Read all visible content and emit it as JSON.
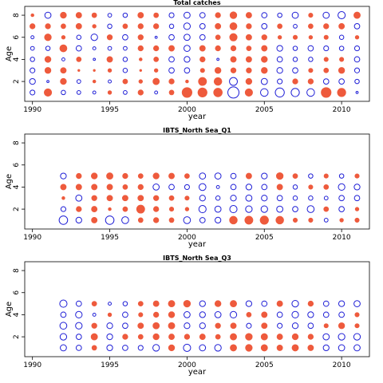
{
  "chart_data": [
    {
      "type": "scatter",
      "title": "Total catches",
      "xlabel": "year",
      "ylabel": "Age",
      "xlim": [
        1989.5,
        2011.8
      ],
      "ylim": [
        0.2,
        8.8
      ],
      "xticks": [
        1990,
        1995,
        2000,
        2005,
        2010
      ],
      "yticks": [
        2,
        4,
        6,
        8
      ],
      "grid": false,
      "x": [
        1990,
        1991,
        1992,
        1993,
        1994,
        1995,
        1996,
        1997,
        1998,
        1999,
        2000,
        2001,
        2002,
        2003,
        2004,
        2005,
        2006,
        2007,
        2008,
        2009,
        2010,
        2011
      ],
      "ages": [
        1,
        2,
        3,
        4,
        5,
        6,
        7,
        8
      ],
      "series": [
        {
          "name": "positive",
          "color": "#ee5a3c",
          "fill": true
        },
        {
          "name": "negative",
          "color": "#1f1fd6",
          "fill": false
        }
      ],
      "residuals": {
        "1": [
          -0.25,
          0.6,
          -0.2,
          -0.15,
          -0.1,
          0.15,
          -0.15,
          0.3,
          -0.1,
          0.25,
          1.05,
          0.9,
          0.8,
          -1.3,
          0.6,
          -0.6,
          -0.85,
          -0.7,
          -0.6,
          1.05,
          0.75,
          -0.05
        ],
        "2": [
          -0.35,
          -0.05,
          0.4,
          -0.15,
          0.1,
          -0.1,
          0.25,
          0.15,
          0.45,
          0.3,
          0.1,
          0.7,
          0.65,
          -0.65,
          0.4,
          -0.4,
          -0.25,
          0.3,
          0.3,
          -0.3,
          -0.3,
          -0.2
        ],
        "3": [
          -0.25,
          0.4,
          0.35,
          0.05,
          0.05,
          0.15,
          -0.2,
          0.05,
          0.15,
          -0.3,
          -0.3,
          0.2,
          0.4,
          0.3,
          0.3,
          0.4,
          -0.35,
          -0.3,
          0.2,
          0.25,
          0.4,
          -0.25
        ],
        "4": [
          -0.2,
          0.4,
          -0.1,
          0.25,
          -0.05,
          0.35,
          -0.2,
          0.1,
          0.25,
          -0.3,
          -0.35,
          0.3,
          -0.05,
          0.35,
          0.35,
          0.4,
          -0.3,
          -0.2,
          -0.2,
          0.2,
          0.2,
          -0.3
        ],
        "5": [
          -0.15,
          -0.2,
          0.55,
          -0.3,
          -0.1,
          -0.15,
          -0.15,
          0.3,
          0.3,
          0.35,
          -0.4,
          0.35,
          0.3,
          0.3,
          0.25,
          0.35,
          -0.35,
          -0.2,
          -0.3,
          -0.25,
          -0.2,
          -0.25
        ],
        "6": [
          -0.1,
          0.5,
          0.15,
          -0.2,
          -0.45,
          0.3,
          -0.3,
          0.3,
          -0.05,
          -0.3,
          -0.4,
          -0.3,
          0.25,
          0.6,
          0.35,
          0.3,
          0.15,
          0.2,
          0.15,
          0.2,
          -0.2,
          0.15
        ],
        "7": [
          0.3,
          0.3,
          0.25,
          0.35,
          0.15,
          -0.2,
          0.25,
          0.3,
          0.3,
          -0.2,
          -0.45,
          -0.3,
          0.35,
          0.55,
          0.3,
          -0.3,
          0.25,
          -0.15,
          0.25,
          0.3,
          0.35,
          -0.3
        ],
        "8": [
          0.1,
          -0.4,
          0.4,
          0.35,
          0.25,
          -0.15,
          -0.2,
          0.35,
          0.25,
          -0.25,
          -0.4,
          -0.3,
          0.3,
          0.5,
          0.35,
          -0.3,
          -0.2,
          -0.4,
          0.2,
          -0.4,
          -0.55,
          0.45
        ]
      }
    },
    {
      "type": "scatter",
      "title": "IBTS_North Sea_Q1",
      "xlabel": "year",
      "ylabel": "Age",
      "xlim": [
        1989.5,
        2011.8
      ],
      "ylim": [
        0.2,
        8.8
      ],
      "xticks": [
        1990,
        1995,
        2000,
        2005,
        2010
      ],
      "yticks": [
        2,
        4,
        6,
        8
      ],
      "grid": false,
      "x": [
        1992,
        1993,
        1994,
        1995,
        1996,
        1997,
        1998,
        1999,
        2000,
        2001,
        2002,
        2003,
        2004,
        2005,
        2006,
        2007,
        2008,
        2009,
        2010,
        2011
      ],
      "ages": [
        1,
        2,
        3,
        4,
        5
      ],
      "series": [
        {
          "name": "positive",
          "color": "#ee5a3c",
          "fill": true
        },
        {
          "name": "negative",
          "color": "#1f1fd6",
          "fill": false
        }
      ],
      "residuals": {
        "1": [
          -0.75,
          -0.35,
          0.35,
          -0.75,
          -0.5,
          0.25,
          0.3,
          0.25,
          -0.5,
          -0.3,
          -0.35,
          0.65,
          0.7,
          0.75,
          0.65,
          0.2,
          0.2,
          -0.15,
          0.15,
          0.2
        ],
        "2": [
          -0.25,
          0.3,
          0.35,
          0.1,
          0.25,
          0.7,
          0.3,
          0.2,
          0.15,
          -0.55,
          -0.4,
          -0.55,
          -0.45,
          -0.45,
          -0.4,
          -0.3,
          -0.5,
          0.25,
          -0.3,
          0.15
        ],
        "3": [
          0.1,
          -0.4,
          0.3,
          0.35,
          0.35,
          0.35,
          0.3,
          0.25,
          0.2,
          -0.35,
          -0.2,
          -0.35,
          -0.4,
          -0.35,
          -0.3,
          -0.2,
          -0.2,
          -0.15,
          -0.3,
          -0.3
        ],
        "4": [
          0.35,
          0.35,
          0.35,
          0.35,
          0.25,
          0.3,
          -0.4,
          -0.3,
          -0.25,
          -0.5,
          -0.1,
          -0.3,
          -0.35,
          -0.3,
          0.35,
          -0.2,
          0.2,
          0.25,
          -0.45,
          -0.35
        ],
        "5": [
          -0.35,
          0.3,
          0.4,
          0.45,
          0.3,
          0.25,
          0.4,
          0.35,
          0.25,
          -0.4,
          -0.4,
          -0.3,
          0.35,
          -0.35,
          0.5,
          0.25,
          -0.2,
          0.2,
          -0.2,
          0.2
        ]
      }
    },
    {
      "type": "scatter",
      "title": "IBTS_North Sea_Q3",
      "xlabel": "year",
      "ylabel": "Age",
      "xlim": [
        1989.5,
        2011.8
      ],
      "ylim": [
        0.2,
        8.8
      ],
      "xticks": [
        1990,
        1995,
        2000,
        2005,
        2010
      ],
      "yticks": [
        2,
        4,
        6,
        8
      ],
      "grid": false,
      "x": [
        1992,
        1993,
        1994,
        1995,
        1996,
        1997,
        1998,
        1999,
        2000,
        2001,
        2002,
        2003,
        2004,
        2005,
        2006,
        2007,
        2008,
        2009,
        2010,
        2011
      ],
      "ages": [
        1,
        2,
        3,
        4,
        5
      ],
      "series": [
        {
          "name": "positive",
          "color": "#ee5a3c",
          "fill": true
        },
        {
          "name": "negative",
          "color": "#1f1fd6",
          "fill": false
        }
      ],
      "residuals": {
        "1": [
          -0.4,
          -0.3,
          0.25,
          -0.35,
          -0.3,
          -0.25,
          -0.45,
          0.4,
          -0.55,
          -0.4,
          -0.45,
          0.45,
          0.5,
          0.45,
          0.35,
          0.45,
          0.35,
          -0.35,
          -0.4,
          -0.4
        ],
        "2": [
          -0.45,
          -0.3,
          0.45,
          -0.35,
          0.3,
          0.25,
          0.4,
          0.35,
          0.3,
          0.35,
          0.25,
          0.45,
          0.5,
          0.45,
          0.35,
          0.4,
          0.3,
          -0.4,
          -0.45,
          -0.45
        ],
        "3": [
          -0.5,
          -0.45,
          0.3,
          -0.35,
          -0.3,
          0.35,
          0.45,
          0.45,
          -0.35,
          -0.35,
          0.3,
          0.35,
          -0.25,
          0.35,
          -0.25,
          -0.35,
          -0.3,
          0.2,
          0.4,
          0.2
        ],
        "4": [
          -0.3,
          -0.45,
          -0.1,
          0.15,
          -0.3,
          0.2,
          0.3,
          0.4,
          -0.4,
          -0.35,
          -0.4,
          -0.45,
          0.25,
          0.35,
          -0.3,
          -0.45,
          -0.35,
          -0.3,
          -0.3,
          0.2
        ],
        "5": [
          -0.55,
          -0.3,
          0.25,
          -0.1,
          -0.2,
          0.25,
          0.35,
          0.45,
          0.5,
          -0.35,
          0.4,
          0.45,
          -0.35,
          -0.3,
          0.35,
          -0.45,
          0.3,
          -0.3,
          -0.35,
          -0.4
        ]
      }
    }
  ]
}
